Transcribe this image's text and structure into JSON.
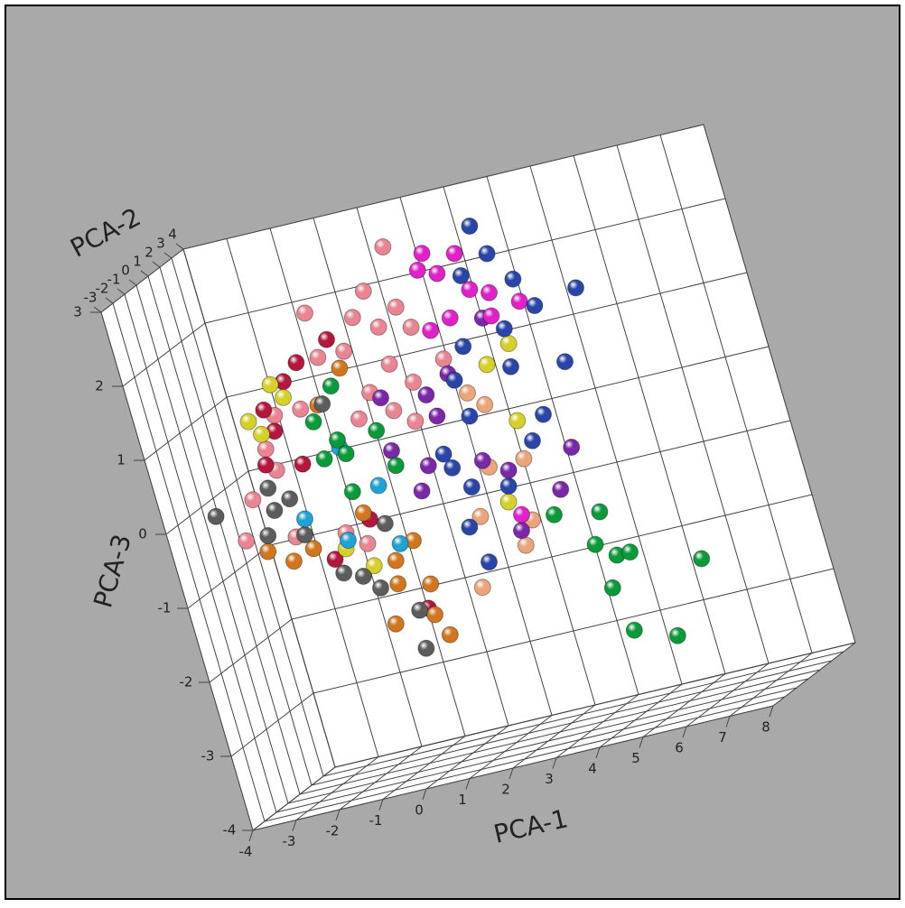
{
  "chart_data": {
    "type": "scatter3d",
    "xlabel": "PCA-1",
    "ylabel": "PCA-2",
    "zlabel": "PCA-3",
    "xlim": [
      -4,
      8
    ],
    "xticks": [
      -4,
      -3,
      -2,
      -1,
      0,
      1,
      2,
      3,
      4,
      5,
      6,
      7,
      8
    ],
    "ylim": [
      -3,
      4
    ],
    "yticks": [
      -3,
      -2,
      -1,
      0,
      1,
      2,
      3,
      4
    ],
    "zlim": [
      -4,
      3
    ],
    "zticks": [
      -4,
      -3,
      -2,
      -1,
      0,
      1,
      2,
      3
    ],
    "grid": true,
    "series": [
      {
        "color": "#e98592",
        "x": [
          1.4,
          0.7,
          -0.7,
          0.3,
          0.8,
          1.3,
          1.5,
          -0.1,
          0.8,
          1.2,
          0.2,
          -2.0,
          -2.4,
          -3.0,
          -3.4,
          -2.3,
          -1.4,
          -0.7,
          -0.2,
          0.6,
          2.0,
          1.0,
          -2.3,
          -1.2,
          -0.8
        ],
        "y": [
          0.5,
          0.5,
          0.5,
          0.5,
          0.5,
          0.5,
          0.5,
          0.5,
          0.5,
          0.5,
          0.5,
          0.5,
          0.5,
          0.5,
          0.5,
          0.5,
          0.5,
          0.5,
          0.5,
          0.5,
          0.5,
          0.5,
          0.5,
          0.5,
          0.5
        ],
        "z": [
          2.7,
          2.2,
          2.1,
          1.9,
          1.7,
          1.9,
          1.6,
          1.5,
          1.2,
          0.9,
          0.9,
          0.9,
          0.5,
          -0.1,
          -0.6,
          0.2,
          0.9,
          1.5,
          0.6,
          0.6,
          1.1,
          0.4,
          -0.7,
          -0.8,
          -1.0
        ]
      },
      {
        "color": "#b3173c",
        "x": [
          -0.4,
          -1.2,
          -2.2,
          -2.1,
          -1.7,
          -2.5,
          -1.6,
          -0.6,
          0.1,
          -1.6
        ],
        "y": [
          0.5,
          0.5,
          0.5,
          0.5,
          0.5,
          0.5,
          0.5,
          0.5,
          0.5,
          0.5
        ],
        "z": [
          1.7,
          1.5,
          1.0,
          0.7,
          0.2,
          0.3,
          -1.1,
          -0.7,
          -2.0,
          1.3
        ]
      },
      {
        "color": "#d6d02a",
        "x": [
          -1.9,
          -2.6,
          -2.4,
          -1.7,
          -1.3,
          -0.8,
          2.9,
          3.2,
          3.5,
          2.5
        ],
        "y": [
          0.5,
          0.5,
          0.5,
          0.5,
          0.5,
          0.5,
          0.5,
          0.5,
          0.5,
          0.5
        ],
        "z": [
          1.3,
          0.9,
          0.7,
          1.1,
          -1.0,
          -1.3,
          0.9,
          0.1,
          1.1,
          -0.9
        ]
      },
      {
        "color": "#d2761e",
        "x": [
          -0.3,
          -1.0,
          -3.0,
          -2.5,
          -2.0,
          -0.3,
          -0.4,
          -0.7,
          0.3,
          0.2,
          0.4,
          -0.7,
          0.2
        ],
        "y": [
          0.5,
          0.5,
          0.5,
          0.5,
          0.5,
          0.5,
          0.5,
          0.5,
          0.5,
          0.5,
          0.5,
          0.5,
          0.5
        ],
        "z": [
          1.3,
          0.9,
          -0.8,
          -1.0,
          -0.9,
          -1.3,
          -1.6,
          -2.1,
          -1.7,
          -2.1,
          -2.4,
          -0.6,
          -1.1
        ]
      },
      {
        "color": "#5c5c5c",
        "x": [
          -3.9,
          -2.6,
          -2.6,
          -2.2,
          -2.1,
          -0.9,
          -1.5,
          -1.1,
          -0.8,
          -0.1,
          -0.2,
          -0.3,
          -2.9
        ],
        "y": [
          0.5,
          0.5,
          0.5,
          0.5,
          0.5,
          0.5,
          0.5,
          0.5,
          0.5,
          0.5,
          0.5,
          0.5,
          0.5
        ],
        "z": [
          -0.2,
          0.0,
          -0.3,
          -0.2,
          -0.7,
          0.9,
          -1.3,
          -1.4,
          -1.6,
          -2.0,
          -2.5,
          -0.8,
          -0.6
        ]
      },
      {
        "color": "#1fa3d4",
        "x": [
          -2.0,
          -1.2,
          -0.1,
          -0.8,
          -0.2
        ],
        "y": [
          0.5,
          0.5,
          0.5,
          0.5,
          0.5
        ],
        "z": [
          -0.5,
          -0.9,
          -1.1,
          0.3,
          -0.3
        ]
      },
      {
        "color": "#eba57a",
        "x": [
          2.3,
          2.6,
          2.3,
          3.1,
          1.8,
          2.6,
          1.4,
          2.9
        ],
        "y": [
          0.5,
          0.5,
          0.5,
          0.5,
          0.5,
          0.5,
          0.5,
          0.5
        ],
        "z": [
          0.6,
          0.4,
          -0.4,
          -0.4,
          -1.0,
          -1.5,
          -1.9,
          -1.2
        ]
      },
      {
        "color": "#7a28a8",
        "x": [
          3.1,
          2.0,
          1.4,
          1.5,
          1.0,
          0.7,
          2.7,
          4.2,
          3.7,
          2.6,
          2.2,
          0.3,
          0.4
        ],
        "y": [
          0.5,
          0.5,
          0.5,
          0.5,
          0.5,
          0.5,
          0.5,
          0.5,
          0.5,
          0.5,
          0.5,
          0.5,
          0.5
        ],
        "z": [
          1.5,
          0.9,
          0.7,
          0.4,
          -0.2,
          -0.5,
          -0.5,
          -0.4,
          -0.9,
          -1.3,
          -0.3,
          0.1,
          0.8
        ]
      },
      {
        "color": "#e020c8",
        "x": [
          2.2,
          2.0,
          2.4,
          2.9,
          3.4,
          3.3,
          4.0,
          1.9,
          2.4,
          3.0,
          2.7
        ],
        "y": [
          0.5,
          0.5,
          0.5,
          0.5,
          0.5,
          0.5,
          0.5,
          0.5,
          0.5,
          0.5,
          0.5
        ],
        "z": [
          2.5,
          2.3,
          2.2,
          2.4,
          1.8,
          1.5,
          1.6,
          1.5,
          1.6,
          1.9,
          -1.1
        ]
      },
      {
        "color": "#2a45a8",
        "x": [
          3.4,
          3.6,
          4.0,
          2.9,
          4.3,
          5.3,
          3.5,
          2.5,
          4.6,
          3.4,
          3.8,
          2.2,
          3.4,
          1.5,
          1.8,
          2.6,
          1.5,
          1.7,
          1.4,
          2.1
        ],
        "y": [
          0.5,
          0.5,
          0.5,
          0.5,
          0.5,
          0.5,
          0.5,
          0.5,
          0.5,
          0.5,
          0.5,
          0.5,
          0.5,
          0.5,
          0.5,
          0.5,
          0.5,
          0.5,
          0.5,
          0.5
        ],
        "z": [
          2.7,
          2.3,
          1.9,
          2.1,
          1.5,
          1.6,
          1.3,
          1.2,
          0.7,
          0.8,
          0.1,
          0.3,
          -0.2,
          -0.3,
          -0.6,
          -0.7,
          -1.1,
          -1.6,
          -0.1,
          0.8
        ]
      },
      {
        "color": "#0a9a3a",
        "x": [
          4.4,
          4.1,
          4.5,
          4.8,
          4.2,
          4.4,
          5.3,
          6.3,
          3.4,
          -1.2,
          -0.8,
          -1.2,
          -0.7,
          -0.6,
          0.1,
          -0.8,
          0.3
        ],
        "y": [
          0.5,
          0.5,
          0.5,
          0.5,
          0.5,
          0.5,
          0.5,
          0.5,
          0.5,
          0.5,
          0.5,
          0.5,
          0.5,
          0.5,
          0.5,
          0.5,
          0.5
        ],
        "z": [
          -1.3,
          -1.7,
          -1.9,
          -1.9,
          -2.3,
          -2.9,
          -3.1,
          -2.2,
          -1.2,
          0.7,
          0.4,
          0.2,
          0.2,
          1.1,
          0.4,
          -0.3,
          -0.1
        ]
      }
    ]
  }
}
